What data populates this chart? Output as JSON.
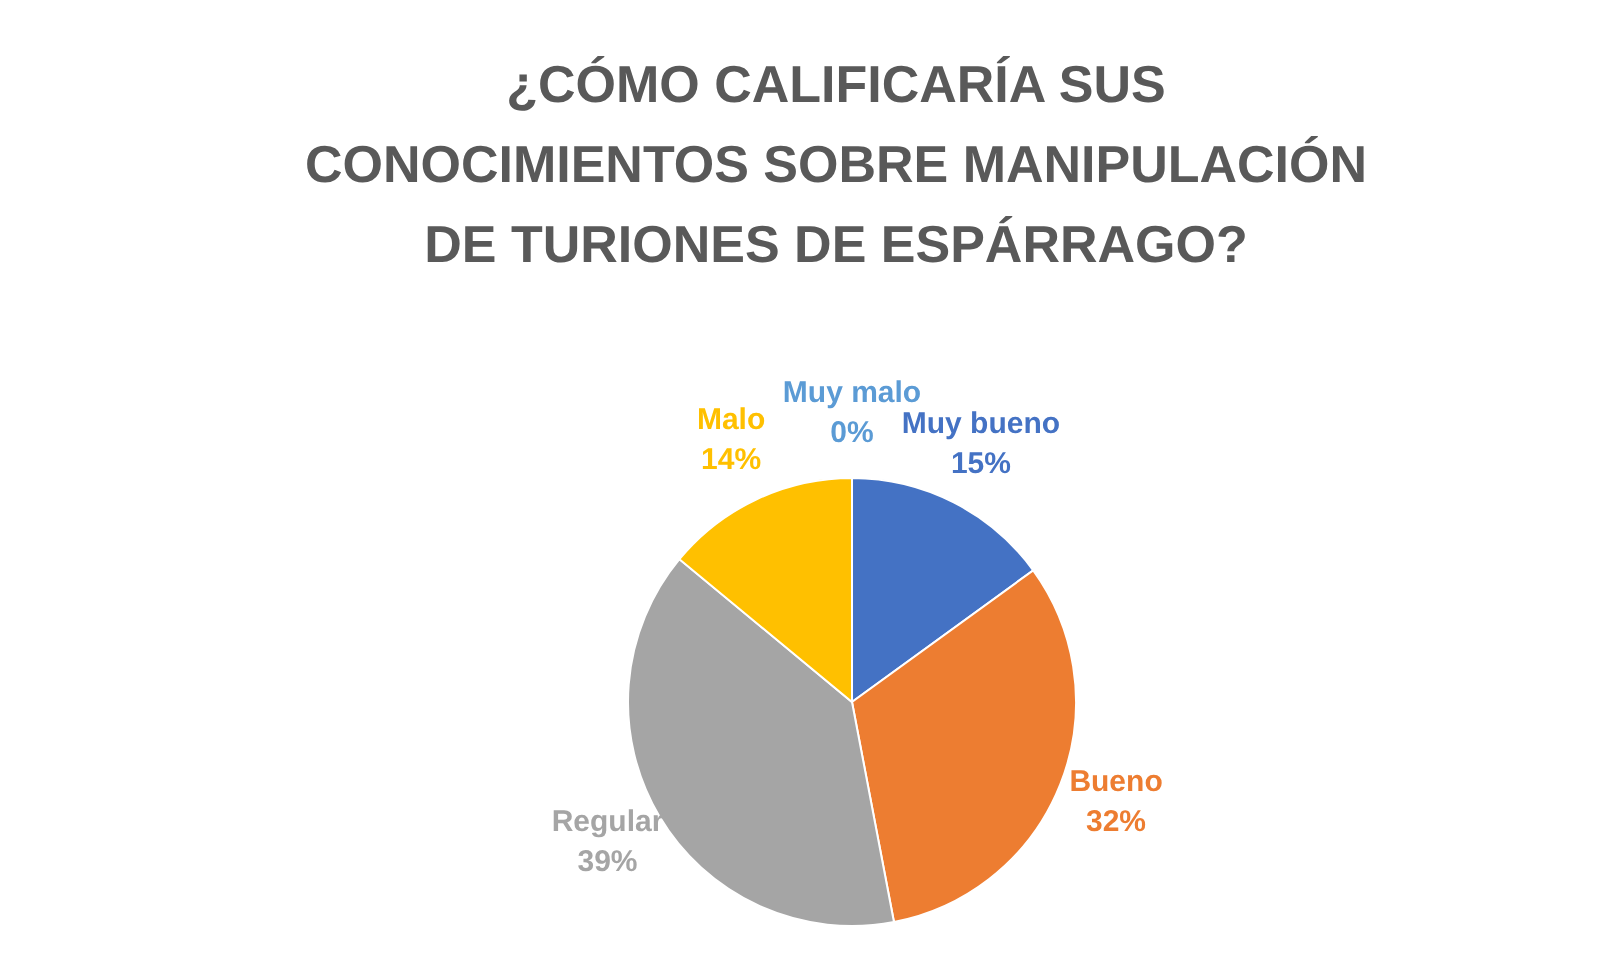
{
  "chart_data": {
    "type": "pie",
    "title": "¿CÓMO CALIFICARÍA SUS CONOCIMIENTOS SOBRE MANIPULACIÓN DE TURIONES DE ESPÁRRAGO?",
    "categories": [
      "Muy bueno",
      "Bueno",
      "Regular",
      "Malo",
      "Muy malo"
    ],
    "values": [
      15,
      32,
      39,
      14,
      0
    ],
    "colors": [
      "#4472c4",
      "#ed7d31",
      "#a5a5a5",
      "#ffc000",
      "#5b9bd5"
    ],
    "value_labels": [
      "15%",
      "32%",
      "39%",
      "14%",
      "0%"
    ],
    "legend": false
  }
}
